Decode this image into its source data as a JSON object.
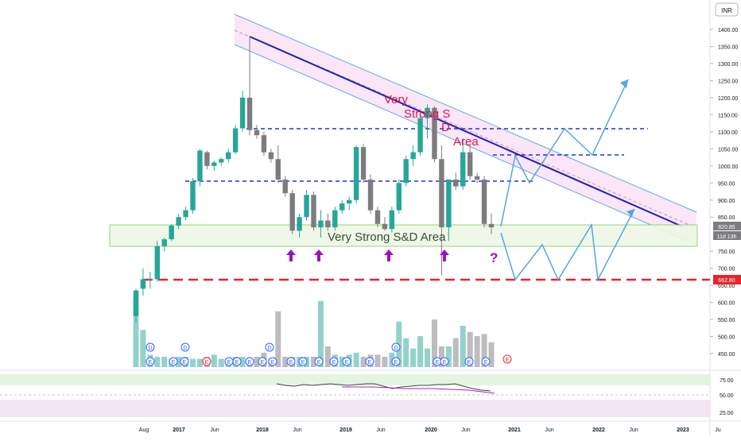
{
  "price_axis": {
    "currency": "INR",
    "ticks": [
      "1400.00",
      "1350.00",
      "1300.00",
      "1250.00",
      "1200.00",
      "1150.00",
      "1100.00",
      "1050.00",
      "1000.00",
      "950.00",
      "900.00",
      "850.00",
      "750.00",
      "700.00",
      "650.00",
      "600.00",
      "550.00",
      "500.00",
      "450.00"
    ],
    "last_price": "820.85",
    "countdown": "11d 13h",
    "support_price": "662.80"
  },
  "rsi_axis": {
    "ticks": [
      "75.00",
      "50.00",
      "25.00"
    ]
  },
  "time_axis": {
    "labels": [
      "Aug",
      "2017",
      "Jun",
      "2018",
      "Jun",
      "2019",
      "Jun",
      "2020",
      "Jun",
      "2021",
      "Jun",
      "2022",
      "Jun",
      "2023",
      "Ju"
    ]
  },
  "annotations": {
    "channel_word1": "Very",
    "channel_word2": "Strong S",
    "channel_word3": "D",
    "channel_word4": "Area",
    "zone_label": "Very Strong S&D Area",
    "question_mark": "?",
    "earnings_badge": "E",
    "dividend_badge": "D"
  },
  "colors": {
    "up": "#26a69a",
    "down": "#7c7c80",
    "channel_fill": "#f7d6f0",
    "channel_line": "#5fa8ef",
    "trend_line": "#1f1fb5",
    "resistance": "#1d34d6",
    "support": "#e5252b",
    "zone_fill": "#eef8e6",
    "zone_line": "#8ccf6e",
    "arrow": "#9c10c7",
    "projection": "#53a6e3",
    "text_red": "#e0144c"
  },
  "chart_data": {
    "type": "candlestick",
    "timeframe": "monthly",
    "candles": [
      {
        "o": 560,
        "h": 640,
        "l": 540,
        "c": 635
      },
      {
        "o": 640,
        "h": 700,
        "l": 620,
        "c": 668
      },
      {
        "o": 666,
        "h": 690,
        "l": 640,
        "c": 668
      },
      {
        "o": 668,
        "h": 780,
        "l": 660,
        "c": 765
      },
      {
        "o": 765,
        "h": 790,
        "l": 750,
        "c": 785
      },
      {
        "o": 785,
        "h": 830,
        "l": 780,
        "c": 825
      },
      {
        "o": 825,
        "h": 860,
        "l": 815,
        "c": 850
      },
      {
        "o": 850,
        "h": 880,
        "l": 840,
        "c": 870
      },
      {
        "o": 870,
        "h": 965,
        "l": 860,
        "c": 955
      },
      {
        "o": 955,
        "h": 1050,
        "l": 940,
        "c": 1045
      },
      {
        "o": 1040,
        "h": 1045,
        "l": 990,
        "c": 1000
      },
      {
        "o": 1000,
        "h": 1015,
        "l": 985,
        "c": 1010
      },
      {
        "o": 1010,
        "h": 1025,
        "l": 1000,
        "c": 1020
      },
      {
        "o": 1020,
        "h": 1050,
        "l": 1010,
        "c": 1040
      },
      {
        "o": 1040,
        "h": 1120,
        "l": 1035,
        "c": 1110
      },
      {
        "o": 1110,
        "h": 1220,
        "l": 1100,
        "c": 1200
      },
      {
        "o": 1200,
        "h": 1380,
        "l": 1090,
        "c": 1105
      },
      {
        "o": 1105,
        "h": 1120,
        "l": 1080,
        "c": 1090
      },
      {
        "o": 1090,
        "h": 1100,
        "l": 1030,
        "c": 1040
      },
      {
        "o": 1040,
        "h": 1050,
        "l": 1010,
        "c": 1020
      },
      {
        "o": 1020,
        "h": 1060,
        "l": 950,
        "c": 960
      },
      {
        "o": 960,
        "h": 970,
        "l": 910,
        "c": 920
      },
      {
        "o": 920,
        "h": 930,
        "l": 800,
        "c": 810
      },
      {
        "o": 810,
        "h": 860,
        "l": 790,
        "c": 850
      },
      {
        "o": 850,
        "h": 930,
        "l": 840,
        "c": 915
      },
      {
        "o": 915,
        "h": 925,
        "l": 810,
        "c": 820
      },
      {
        "o": 820,
        "h": 870,
        "l": 790,
        "c": 840
      },
      {
        "o": 840,
        "h": 860,
        "l": 810,
        "c": 820
      },
      {
        "o": 820,
        "h": 880,
        "l": 810,
        "c": 870
      },
      {
        "o": 870,
        "h": 900,
        "l": 860,
        "c": 890
      },
      {
        "o": 890,
        "h": 910,
        "l": 870,
        "c": 900
      },
      {
        "o": 900,
        "h": 1060,
        "l": 890,
        "c": 1055
      },
      {
        "o": 1055,
        "h": 1065,
        "l": 950,
        "c": 960
      },
      {
        "o": 960,
        "h": 975,
        "l": 860,
        "c": 870
      },
      {
        "o": 870,
        "h": 880,
        "l": 820,
        "c": 830
      },
      {
        "o": 830,
        "h": 850,
        "l": 810,
        "c": 815
      },
      {
        "o": 815,
        "h": 880,
        "l": 805,
        "c": 870
      },
      {
        "o": 870,
        "h": 960,
        "l": 860,
        "c": 950
      },
      {
        "o": 950,
        "h": 1030,
        "l": 940,
        "c": 1020
      },
      {
        "o": 1020,
        "h": 1060,
        "l": 1000,
        "c": 1040
      },
      {
        "o": 1040,
        "h": 1150,
        "l": 1030,
        "c": 1140
      },
      {
        "o": 1140,
        "h": 1180,
        "l": 1080,
        "c": 1170
      },
      {
        "o": 1170,
        "h": 1175,
        "l": 1010,
        "c": 1020
      },
      {
        "o": 1020,
        "h": 1060,
        "l": 680,
        "c": 820
      },
      {
        "o": 820,
        "h": 960,
        "l": 780,
        "c": 960
      },
      {
        "o": 960,
        "h": 980,
        "l": 930,
        "c": 940
      },
      {
        "o": 940,
        "h": 1080,
        "l": 930,
        "c": 1040
      },
      {
        "o": 1040,
        "h": 1060,
        "l": 960,
        "c": 970
      },
      {
        "o": 970,
        "h": 980,
        "l": 950,
        "c": 960
      },
      {
        "o": 960,
        "h": 970,
        "l": 820,
        "c": 830
      },
      {
        "o": 830,
        "h": 860,
        "l": 800,
        "c": 820
      }
    ],
    "volume": [
      0.36,
      0.18,
      0.06,
      0.05,
      0.05,
      0.04,
      0.05,
      0.05,
      0.04,
      0.04,
      0.05,
      0.06,
      0.04,
      0.04,
      0.05,
      0.05,
      0.04,
      0.05,
      0.07,
      0.04,
      0.27,
      0.05,
      0.05,
      0.05,
      0.05,
      0.05,
      0.32,
      0.1,
      0.06,
      0.05,
      0.06,
      0.07,
      0.05,
      0.06,
      0.06,
      0.05,
      0.07,
      0.22,
      0.14,
      0.09,
      0.15,
      0.09,
      0.23,
      0.1,
      0.1,
      0.14,
      0.2,
      0.17,
      0.15,
      0.16,
      0.12
    ],
    "rsi": [
      64,
      62,
      61,
      63,
      62,
      63,
      64,
      63,
      62,
      63,
      64,
      64,
      61,
      58,
      60,
      61,
      62,
      62,
      63,
      63,
      64,
      61,
      58,
      56,
      55
    ],
    "levels": {
      "resistance_upper": 1110,
      "resistance_lower": 955,
      "resistance_mid": 1030,
      "support": 662.8,
      "demand_zone": [
        760,
        820
      ]
    },
    "ylim": [
      430,
      1440
    ]
  }
}
